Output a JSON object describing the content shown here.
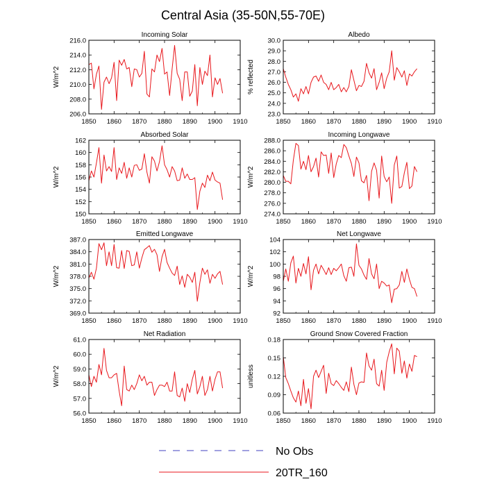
{
  "title": "Central Asia (35-50N,55-70E)",
  "legend": [
    {
      "label": "No Obs",
      "color": "#4040c0",
      "dash": true
    },
    {
      "label": "20TR_160",
      "color": "#e8161b",
      "dash": false
    }
  ],
  "series_color": "#e8161b",
  "chart_data": [
    {
      "type": "line",
      "title": "Incoming Solar",
      "ylabel": "W/m^2",
      "xlim": [
        1850,
        1910
      ],
      "ylim": [
        206,
        216
      ],
      "xticks": [
        1850,
        1860,
        1870,
        1880,
        1890,
        1900,
        1910
      ],
      "yticks": [
        "206.0",
        "208.0",
        "210.0",
        "212.0",
        "214.0",
        "216.0"
      ],
      "x0": 1850,
      "xstep": 1,
      "values": [
        212.7,
        212.9,
        209.4,
        211.4,
        212.5,
        206.6,
        210.3,
        211.0,
        210.1,
        210.9,
        213.0,
        207.8,
        213.3,
        212.6,
        213.4,
        212.1,
        212.3,
        209.7,
        212.1,
        212.0,
        211.0,
        211.5,
        214.5,
        208.7,
        208.3,
        212.1,
        211.7,
        214.0,
        213.1,
        214.9,
        211.4,
        211.7,
        208.5,
        212.1,
        215.3,
        211.5,
        210.7,
        207.8,
        211.7,
        211.7,
        208.4,
        209.1,
        212.7,
        207.1,
        212.3,
        210.0,
        211.8,
        211.2,
        214.0,
        208.3,
        210.9,
        210.0,
        210.8,
        208.8
      ]
    },
    {
      "type": "line",
      "title": "Albedo",
      "ylabel": "% reflected",
      "xlim": [
        1850,
        1910
      ],
      "ylim": [
        23,
        30
      ],
      "xticks": [
        1850,
        1860,
        1870,
        1880,
        1890,
        1900,
        1910
      ],
      "yticks": [
        "23.0",
        "24.0",
        "25.0",
        "26.0",
        "27.0",
        "28.0",
        "29.0",
        "30.0"
      ],
      "x0": 1850,
      "xstep": 1,
      "values": [
        27.3,
        26.5,
        25.8,
        25.3,
        24.6,
        24.9,
        24.2,
        25.4,
        24.9,
        25.6,
        24.9,
        26.0,
        26.5,
        26.6,
        26.1,
        26.7,
        26.0,
        25.8,
        25.3,
        26.0,
        25.3,
        25.5,
        25.8,
        25.1,
        25.5,
        25.1,
        25.6,
        27.2,
        26.2,
        25.2,
        25.7,
        25.6,
        26.1,
        27.8,
        26.9,
        26.4,
        27.3,
        25.3,
        26.0,
        26.9,
        25.4,
        26.4,
        27.0,
        29.0,
        26.2,
        27.4,
        27.0,
        26.5,
        27.1,
        25.7,
        26.8,
        26.6,
        27.0,
        27.3
      ]
    },
    {
      "type": "line",
      "title": "Absorbed Solar",
      "ylabel": "W/m^2",
      "xlim": [
        1850,
        1910
      ],
      "ylim": [
        150,
        162
      ],
      "xticks": [
        1850,
        1860,
        1870,
        1880,
        1890,
        1900,
        1910
      ],
      "yticks": [
        "150",
        "152",
        "154",
        "156",
        "158",
        "160",
        "162"
      ],
      "x0": 1850,
      "xstep": 1,
      "values": [
        155.4,
        157.0,
        156.0,
        158.3,
        160.8,
        155.0,
        159.6,
        157.0,
        157.7,
        156.9,
        160.8,
        155.6,
        157.5,
        156.6,
        158.4,
        155.8,
        157.5,
        156.0,
        157.9,
        158.0,
        157.1,
        157.3,
        159.8,
        156.8,
        155.0,
        159.3,
        158.6,
        157.0,
        158.5,
        161.1,
        158.0,
        157.2,
        156.0,
        157.7,
        157.0,
        155.4,
        155.5,
        157.5,
        155.8,
        156.5,
        155.6,
        155.6,
        155.9,
        150.7,
        153.7,
        155.0,
        154.3,
        156.3,
        155.4,
        156.8,
        155.5,
        155.2,
        155.0,
        152.3
      ]
    },
    {
      "type": "line",
      "title": "Incoming Longwave",
      "ylabel": "W/m^2",
      "xlim": [
        1850,
        1910
      ],
      "ylim": [
        274,
        288
      ],
      "xticks": [
        1850,
        1860,
        1870,
        1880,
        1890,
        1900,
        1910
      ],
      "yticks": [
        "274.0",
        "276.0",
        "278.0",
        "280.0",
        "282.0",
        "284.0",
        "286.0",
        "288.0"
      ],
      "x0": 1850,
      "xstep": 1,
      "values": [
        281.3,
        280.2,
        280.2,
        279.7,
        284.2,
        287.4,
        287.0,
        282.5,
        284.0,
        282.4,
        285.1,
        282.0,
        283.0,
        284.6,
        281.0,
        285.8,
        285.1,
        285.2,
        281.7,
        285.6,
        280.9,
        283.5,
        285.1,
        284.7,
        287.2,
        286.6,
        285.0,
        283.6,
        281.1,
        284.8,
        283.7,
        280.3,
        279.9,
        281.3,
        276.5,
        282.1,
        283.7,
        282.3,
        277.0,
        285.0,
        281.1,
        280.1,
        281.0,
        276.0,
        283.3,
        285.0,
        278.9,
        279.2,
        281.8,
        283.8,
        278.8,
        279.3,
        283.0,
        282.0
      ]
    },
    {
      "type": "line",
      "title": "Emitted Longwave",
      "ylabel": "W/m^2",
      "xlim": [
        1850,
        1910
      ],
      "ylim": [
        369,
        387
      ],
      "xticks": [
        1850,
        1860,
        1870,
        1880,
        1890,
        1900,
        1910
      ],
      "yticks": [
        "369.0",
        "372.0",
        "375.0",
        "378.0",
        "381.0",
        "384.0",
        "387.0"
      ],
      "x0": 1850,
      "xstep": 1,
      "values": [
        377.6,
        379.0,
        377.3,
        380.0,
        386.0,
        384.5,
        386.2,
        380.6,
        384.0,
        380.6,
        385.8,
        380.1,
        380.0,
        384.3,
        379.9,
        384.3,
        384.1,
        380.6,
        380.8,
        384.0,
        380.0,
        382.5,
        384.5,
        385.0,
        385.5,
        383.9,
        384.6,
        383.3,
        379.2,
        382.8,
        384.6,
        381.4,
        380.0,
        378.8,
        378.2,
        380.5,
        376.0,
        378.1,
        375.3,
        378.5,
        377.8,
        376.5,
        379.0,
        371.9,
        376.5,
        380.0,
        378.5,
        379.6,
        376.3,
        378.5,
        377.5,
        378.6,
        379.2,
        376.0
      ]
    },
    {
      "type": "line",
      "title": "Net Longwave",
      "ylabel": "W/m^2",
      "xlim": [
        1850,
        1910
      ],
      "ylim": [
        92,
        104
      ],
      "xticks": [
        1850,
        1860,
        1870,
        1880,
        1890,
        1900,
        1910
      ],
      "yticks": [
        "92",
        "94",
        "96",
        "98",
        "100",
        "102",
        "104"
      ],
      "x0": 1850,
      "xstep": 1,
      "values": [
        97.2,
        99.2,
        97.2,
        100.2,
        101.3,
        96.9,
        99.3,
        98.0,
        100.1,
        98.4,
        101.2,
        95.8,
        99.0,
        100.0,
        98.4,
        99.8,
        99.1,
        98.3,
        99.4,
        98.3,
        99.3,
        98.9,
        99.4,
        100.0,
        98.1,
        97.2,
        99.4,
        99.5,
        98.0,
        103.3,
        99.8,
        99.2,
        98.2,
        97.5,
        100.9,
        98.4,
        97.6,
        100.0,
        96.0,
        97.2,
        96.9,
        96.4,
        96.6,
        93.7,
        95.9,
        96.0,
        96.6,
        98.8,
        97.0,
        99.2,
        97.5,
        96.2,
        96.0,
        94.7
      ]
    },
    {
      "type": "line",
      "title": "Net Radiation",
      "ylabel": "W/m^2",
      "xlim": [
        1850,
        1910
      ],
      "ylim": [
        56,
        61
      ],
      "xticks": [
        1850,
        1860,
        1870,
        1880,
        1890,
        1900,
        1910
      ],
      "yticks": [
        "56.0",
        "57.0",
        "58.0",
        "59.0",
        "60.0",
        "61.0"
      ],
      "x0": 1850,
      "xstep": 1,
      "values": [
        58.6,
        57.8,
        58.5,
        58.1,
        59.3,
        58.6,
        60.4,
        58.9,
        58.4,
        58.4,
        58.6,
        58.7,
        57.5,
        56.5,
        59.2,
        57.6,
        57.5,
        57.9,
        57.6,
        58.0,
        58.6,
        58.2,
        58.5,
        57.9,
        58.1,
        58.1,
        57.2,
        57.6,
        57.9,
        57.9,
        57.8,
        58.1,
        57.5,
        57.5,
        58.8,
        57.2,
        57.1,
        57.7,
        56.8,
        58.0,
        57.4,
        58.3,
        58.9,
        57.3,
        57.8,
        58.5,
        57.2,
        57.6,
        58.5,
        57.5,
        58.3,
        58.8,
        58.8,
        57.7
      ]
    },
    {
      "type": "line",
      "title": "Ground Snow Covered Fraction",
      "ylabel": "unitless",
      "xlim": [
        1850,
        1910
      ],
      "ylim": [
        0.06,
        0.18
      ],
      "xticks": [
        1850,
        1860,
        1870,
        1880,
        1890,
        1900,
        1910
      ],
      "yticks": [
        "0.06",
        "0.09",
        "0.12",
        "0.15",
        "0.18"
      ],
      "x0": 1850,
      "xstep": 1,
      "values": [
        0.152,
        0.118,
        0.108,
        0.096,
        0.085,
        0.078,
        0.096,
        0.072,
        0.115,
        0.076,
        0.1,
        0.067,
        0.12,
        0.13,
        0.118,
        0.128,
        0.138,
        0.092,
        0.125,
        0.108,
        0.105,
        0.113,
        0.108,
        0.102,
        0.097,
        0.111,
        0.095,
        0.135,
        0.107,
        0.09,
        0.109,
        0.111,
        0.11,
        0.158,
        0.137,
        0.13,
        0.148,
        0.108,
        0.104,
        0.13,
        0.097,
        0.143,
        0.16,
        0.173,
        0.124,
        0.166,
        0.161,
        0.125,
        0.145,
        0.117,
        0.14,
        0.128,
        0.154,
        0.152
      ]
    }
  ]
}
